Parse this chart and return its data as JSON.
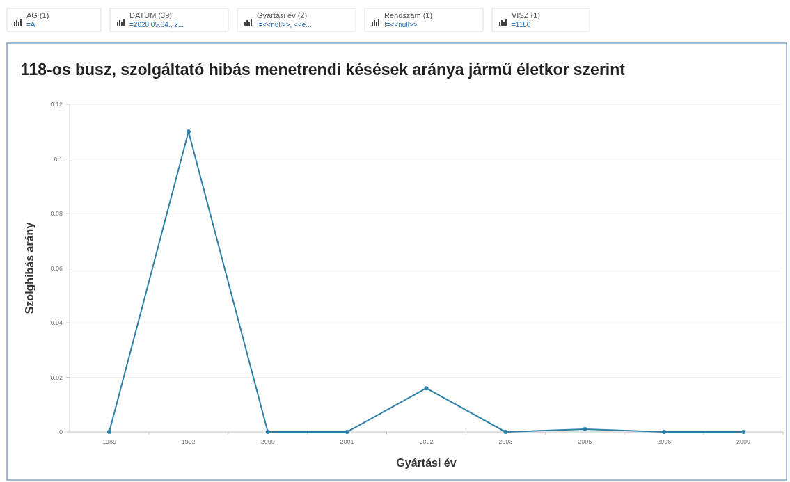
{
  "chart_data": {
    "type": "line",
    "title": "118-os busz, szolgáltató hibás menetrendi késések aránya jármű életkor szerint",
    "xlabel": "Gyártási év",
    "ylabel": "Szolghibás arány",
    "annotations": [
      "AG (1)",
      "=A",
      "DATUM (39)",
      "=2020.05.04., 2...",
      "Gyártási év (2)",
      "!=<<null>>, <<e...",
      "Rendszám (1)",
      "!=<<null>>",
      "VISZ (1)",
      "=1180"
    ],
    "categories": [
      "1989",
      "1992",
      "2000",
      "2001",
      "2002",
      "2003",
      "2005",
      "2006",
      "2009"
    ],
    "series": [
      {
        "color": "#2e7fa8",
        "values": [
          0,
          0.11,
          0,
          0,
          0.016,
          0,
          0.001,
          0,
          0
        ]
      }
    ],
    "ylim": [
      0,
      0.12
    ],
    "yticks": [
      0,
      0.02,
      0.04,
      0.06,
      0.08,
      0.1,
      0.12
    ],
    "grid": "y",
    "marker": "circle",
    "line_style": "solid"
  }
}
